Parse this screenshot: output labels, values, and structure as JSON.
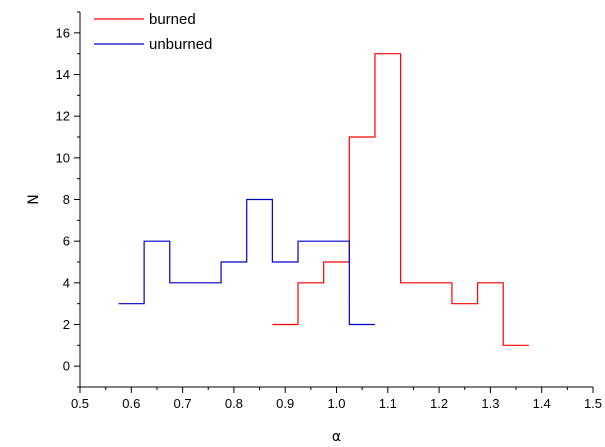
{
  "chart_data": {
    "type": "line",
    "step": "histogram",
    "xlabel": "α",
    "ylabel": "N",
    "xlim": [
      0.5,
      1.5
    ],
    "ylim": [
      -1,
      17
    ],
    "xticks": [
      "0.5",
      "0.6",
      "0.7",
      "0.8",
      "0.9",
      "1.0",
      "1.1",
      "1.2",
      "1.3",
      "1.4",
      "1.5"
    ],
    "xtick_values": [
      0.5,
      0.6,
      0.7,
      0.8,
      0.9,
      1.0,
      1.1,
      1.2,
      1.3,
      1.4,
      1.5
    ],
    "yticks": [
      "0",
      "2",
      "4",
      "6",
      "8",
      "10",
      "12",
      "14",
      "16"
    ],
    "ytick_values": [
      0,
      2,
      4,
      6,
      8,
      10,
      12,
      14,
      16
    ],
    "grid": false,
    "legend_position": "top-left",
    "series": [
      {
        "name": "burned",
        "color": "#ff0000",
        "bin_width": 0.05,
        "x": [
          0.9,
          0.95,
          1.0,
          1.05,
          1.1,
          1.15,
          1.2,
          1.25,
          1.3,
          1.35
        ],
        "values": [
          2,
          4,
          5,
          11,
          15,
          4,
          4,
          3,
          4,
          1
        ]
      },
      {
        "name": "unburned",
        "color": "#0000cc",
        "bin_width": 0.05,
        "x": [
          0.6,
          0.65,
          0.7,
          0.75,
          0.8,
          0.85,
          0.9,
          0.95,
          1.0,
          1.05
        ],
        "values": [
          3,
          6,
          4,
          4,
          5,
          8,
          5,
          6,
          6,
          2
        ]
      }
    ]
  }
}
